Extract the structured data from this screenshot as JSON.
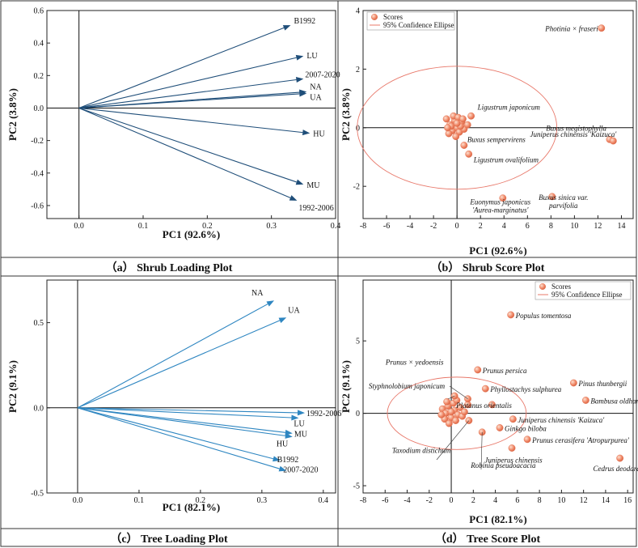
{
  "chart_data": [
    {
      "id": "a",
      "type": "biplot-loadings",
      "caption": "（a） Shrub Loading Plot",
      "xlabel": "PC1 (92.6%)",
      "ylabel": "PC2 (3.8%)",
      "xlim": [
        -0.05,
        0.4
      ],
      "ylim": [
        -0.68,
        0.6
      ],
      "xticks": [
        0.0,
        0.1,
        0.2,
        0.3,
        0.4
      ],
      "yticks": [
        -0.6,
        -0.4,
        -0.2,
        0.0,
        0.2,
        0.4,
        0.6
      ],
      "arrow_color": "#1f4e79",
      "vectors": [
        {
          "label": "B1992",
          "x": 0.33,
          "y": 0.51
        },
        {
          "label": "LU",
          "x": 0.35,
          "y": 0.32
        },
        {
          "label": "2007-2020",
          "x": 0.35,
          "y": 0.18
        },
        {
          "label": "NA",
          "x": 0.355,
          "y": 0.1
        },
        {
          "label": "UA",
          "x": 0.355,
          "y": 0.09
        },
        {
          "label": "HU",
          "x": 0.36,
          "y": -0.155
        },
        {
          "label": "MU",
          "x": 0.35,
          "y": -0.47
        },
        {
          "label": "1992-2006",
          "x": 0.34,
          "y": -0.57
        }
      ]
    },
    {
      "id": "b",
      "type": "scatter",
      "caption": "（b） Shrub  Score Plot",
      "xlabel": "PC1 (92.6%)",
      "ylabel": "PC2 (3.8%)",
      "xlim": [
        -8,
        15
      ],
      "ylim": [
        -3.1,
        4.0
      ],
      "xticks": [
        -8,
        -6,
        -4,
        -2,
        0,
        2,
        4,
        6,
        8,
        10,
        12,
        14
      ],
      "yticks": [
        -2,
        0,
        2,
        4
      ],
      "legend": [
        "Scores",
        "95% Confidence Ellipse"
      ],
      "ellipse": {
        "cx": 0,
        "cy": 0,
        "rx": 8.5,
        "ry": 2.1
      },
      "cluster": [
        [
          -0.9,
          0.3
        ],
        [
          -0.6,
          0.1
        ],
        [
          -0.4,
          -0.1
        ],
        [
          -0.2,
          0.25
        ],
        [
          0.0,
          0.0
        ],
        [
          0.2,
          -0.15
        ],
        [
          -0.7,
          -0.2
        ],
        [
          -0.3,
          0.4
        ],
        [
          0.4,
          0.2
        ],
        [
          0.6,
          -0.05
        ],
        [
          -0.1,
          -0.3
        ],
        [
          0.1,
          0.35
        ],
        [
          -0.5,
          0.05
        ],
        [
          0.3,
          0.05
        ],
        [
          0.9,
          0.1
        ],
        [
          -0.8,
          0.0
        ],
        [
          0.5,
          0.3
        ],
        [
          0.0,
          0.15
        ]
      ],
      "labeled_points": [
        {
          "label": "Photinia × fraseri",
          "x": 12.3,
          "y": 3.4
        },
        {
          "label": "Ligustrum japonicum",
          "x": 1.2,
          "y": 0.4
        },
        {
          "label": "Buxus megistophylla",
          "x": 13.0,
          "y": -0.4
        },
        {
          "label": "Juniperus chinensis 'Kaizuca'",
          "x": 13.3,
          "y": -0.45
        },
        {
          "label": "Buxus sempervirens",
          "x": 0.6,
          "y": -0.6
        },
        {
          "label": "Ligustrum ovalifolium",
          "x": 1.0,
          "y": -0.9
        },
        {
          "label": "Euonymus japonicus 'Aurea-marginatus'",
          "x": 3.9,
          "y": -2.4
        },
        {
          "label": "Buxus sinica var. parvifolia",
          "x": 8.1,
          "y": -2.35
        }
      ]
    },
    {
      "id": "c",
      "type": "biplot-loadings",
      "caption": "（c） Tree Loading Plot",
      "xlabel": "PC1 (82.1%)",
      "ylabel": "PC2 (9.1%)",
      "xlim": [
        -0.05,
        0.42
      ],
      "ylim": [
        -0.5,
        0.75
      ],
      "xticks": [
        0.0,
        0.1,
        0.2,
        0.3,
        0.4
      ],
      "yticks": [
        -0.5,
        0.0,
        0.5
      ],
      "arrow_color": "#2e86c1",
      "vectors": [
        {
          "label": "NA",
          "x": 0.32,
          "y": 0.63
        },
        {
          "label": "UA",
          "x": 0.34,
          "y": 0.53
        },
        {
          "label": "1992-2006",
          "x": 0.37,
          "y": -0.03
        },
        {
          "label": "LU",
          "x": 0.36,
          "y": -0.06
        },
        {
          "label": "MU",
          "x": 0.35,
          "y": -0.15
        },
        {
          "label": "HU",
          "x": 0.35,
          "y": -0.17
        },
        {
          "label": "B1992",
          "x": 0.33,
          "y": -0.31
        },
        {
          "label": "2007-2020",
          "x": 0.34,
          "y": -0.37
        }
      ]
    },
    {
      "id": "d",
      "type": "scatter",
      "caption": "（d） Tree  Score Plot",
      "xlabel": "PC1 (82.1%)",
      "ylabel": "PC2 (9.1%)",
      "xlim": [
        -8,
        16.5
      ],
      "ylim": [
        -5.5,
        9.2
      ],
      "xticks": [
        -8,
        -6,
        -4,
        -2,
        0,
        2,
        4,
        6,
        8,
        10,
        12,
        14,
        16
      ],
      "yticks": [
        -5,
        0,
        5
      ],
      "legend": [
        "Scores",
        "95% Confidence Ellipse"
      ],
      "ellipse": {
        "cx": 0.5,
        "cy": 0,
        "rx": 6.3,
        "ry": 2.5
      },
      "cluster": [
        [
          -0.8,
          0.3
        ],
        [
          -0.5,
          0.0
        ],
        [
          -0.3,
          0.5
        ],
        [
          0.0,
          -0.3
        ],
        [
          0.3,
          0.2
        ],
        [
          0.6,
          -0.1
        ],
        [
          -0.6,
          -0.4
        ],
        [
          0.2,
          0.7
        ],
        [
          0.8,
          0.4
        ],
        [
          1.0,
          -0.2
        ],
        [
          -0.2,
          -0.7
        ],
        [
          0.4,
          -0.5
        ],
        [
          1.2,
          0.1
        ],
        [
          -0.9,
          -0.1
        ],
        [
          0.0,
          0.1
        ],
        [
          0.5,
          0.9
        ],
        [
          1.5,
          0.6
        ],
        [
          -0.4,
          0.8
        ]
      ],
      "labeled_points": [
        {
          "label": "Populus tomentosa",
          "x": 5.4,
          "y": 6.8
        },
        {
          "label": "Prunus persica",
          "x": 2.4,
          "y": 3.0
        },
        {
          "label": "Prunus × yedoensis",
          "x": 1.5,
          "y": 1.0
        },
        {
          "label": "Phyllostachys sulphurea",
          "x": 3.1,
          "y": 1.7
        },
        {
          "label": "Styphnolobium japonicum",
          "x": 0.3,
          "y": 1.2
        },
        {
          "label": "Pinus thunbergii",
          "x": 11.1,
          "y": 2.1
        },
        {
          "label": "Platanus orientalis",
          "x": 3.7,
          "y": 0.6
        },
        {
          "label": "Bambusa oldhamii",
          "x": 12.2,
          "y": 0.9
        },
        {
          "label": "Juniperus chinensis 'Kaizuca'",
          "x": 5.6,
          "y": -0.4
        },
        {
          "label": "Ginkgo biloba",
          "x": 4.4,
          "y": -1.0
        },
        {
          "label": "Prunus cerasifera 'Atropurpurea'",
          "x": 6.9,
          "y": -1.8
        },
        {
          "label": "Juniperus chinensis",
          "x": 5.5,
          "y": -2.4
        },
        {
          "label": "Cedrus deodara",
          "x": 15.3,
          "y": -3.1
        },
        {
          "label": "Taxodium distichum",
          "x": 1.6,
          "y": -0.5
        },
        {
          "label": "Robinia pseudoacacia",
          "x": 2.8,
          "y": -1.3
        }
      ]
    }
  ]
}
